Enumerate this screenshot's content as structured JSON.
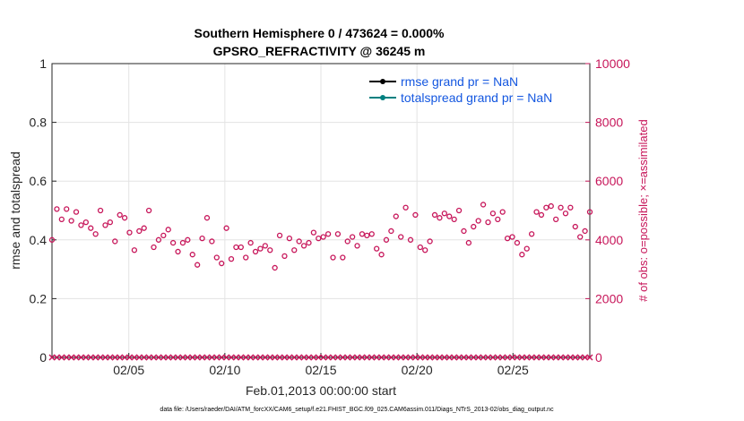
{
  "chart_data": {
    "type": "line",
    "title_line1": "Southern Hemisphere 0 / 473624 = 0.000%",
    "title_line2": "GPSRO_REFRACTIVITY @ 36245 m",
    "xlabel": "Feb.01,2013 00:00:00 start",
    "ylabel_left": "rmse and totalspread",
    "ylabel_right": "# of obs: o=possible; ×=assimilated",
    "footnote": "data file: /Users/raeder/DAI/ATM_forcXX/CAM6_setup/f.e21.FHIST_BGC.f09_025.CAM6assim.011/Diags_NTrS_2013-02/obs_diag_output.nc",
    "x_range": [
      "2013-02-01",
      "2013-02-29"
    ],
    "x_ticks": [
      "02/05",
      "02/10",
      "02/15",
      "02/20",
      "02/25"
    ],
    "y_left_range": [
      0,
      1
    ],
    "y_left_ticks": [
      "0",
      "0.2",
      "0.4",
      "0.6",
      "0.8",
      "1"
    ],
    "y_right_range": [
      0,
      10000
    ],
    "y_right_ticks": [
      "0",
      "2000",
      "4000",
      "6000",
      "8000",
      "10000"
    ],
    "grid": true,
    "legend_position": "top-right",
    "colors": {
      "rmse": "#000000",
      "totalspread": "#008080",
      "obs": "#c7165a",
      "legend_text": "#1457e0"
    },
    "series": [
      {
        "name": "rmse grand pr = NaN",
        "values": []
      },
      {
        "name": "totalspread grand pr = NaN",
        "values": []
      }
    ],
    "obs_possible": [
      4000,
      5050,
      4700,
      5050,
      4650,
      4950,
      4500,
      4600,
      4400,
      4200,
      5000,
      4500,
      4600,
      3950,
      4850,
      4750,
      4250,
      3650,
      4300,
      4400,
      5000,
      3750,
      4000,
      4150,
      4350,
      3900,
      3600,
      3900,
      4000,
      3500,
      3150,
      4050,
      4750,
      3950,
      3400,
      3200,
      4400,
      3350,
      3750,
      3750,
      3400,
      3900,
      3600,
      3700,
      3800,
      3650,
      3050,
      4150,
      3450,
      4050,
      3650,
      3950,
      3800,
      3900,
      4250,
      4050,
      4100,
      4200,
      3400,
      4200,
      3400,
      3950,
      4100,
      3800,
      4200,
      4150,
      4200,
      3700,
      3500,
      4000,
      4300,
      4800,
      4100,
      5100,
      4000,
      4850,
      3750,
      3650,
      3950,
      4850,
      4750,
      4900,
      4800,
      4700,
      5000,
      4300,
      3900,
      4450,
      4650,
      5200,
      4600,
      4900,
      4700,
      4950,
      4050,
      4100,
      3900,
      3500,
      3700,
      4200,
      4950,
      4850,
      5100,
      5150,
      4700,
      5100,
      4900,
      5100,
      4450,
      4100,
      4300,
      4950
    ],
    "obs_assimilated": [
      0,
      0,
      0,
      0,
      0,
      0,
      0,
      0,
      0,
      0,
      0,
      0,
      0,
      0,
      0,
      0,
      0,
      0,
      0,
      0,
      0,
      0,
      0,
      0,
      0,
      0,
      0,
      0,
      0,
      0,
      0,
      0,
      0,
      0,
      0,
      0,
      0,
      0,
      0,
      0,
      0,
      0,
      0,
      0,
      0,
      0,
      0,
      0,
      0,
      0,
      0,
      0,
      0,
      0,
      0,
      0,
      0,
      0,
      0,
      0,
      0,
      0,
      0,
      0,
      0,
      0,
      0,
      0,
      0,
      0,
      0,
      0,
      0,
      0,
      0,
      0,
      0,
      0,
      0,
      0,
      0,
      0,
      0,
      0,
      0,
      0,
      0,
      0,
      0,
      0,
      0,
      0,
      0,
      0,
      0,
      0,
      0,
      0,
      0,
      0,
      0,
      0,
      0,
      0,
      0,
      0,
      0,
      0,
      0,
      0,
      0,
      0
    ]
  }
}
